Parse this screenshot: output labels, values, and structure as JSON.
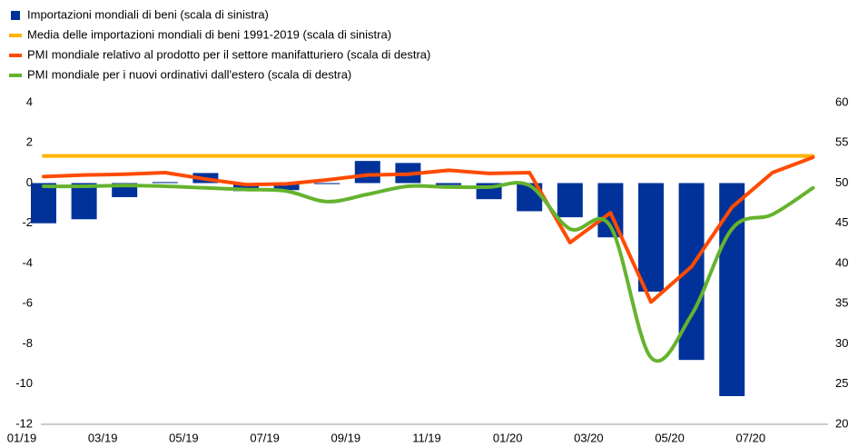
{
  "chart_data": {
    "type": "combo",
    "categories": [
      "01/19",
      null,
      "03/19",
      null,
      "05/19",
      null,
      "07/19",
      null,
      "09/19",
      null,
      "11/19",
      null,
      "01/20",
      null,
      "03/20",
      null,
      "05/20",
      null,
      "07/20",
      null
    ],
    "series": [
      {
        "name": "Importazioni mondiali di beni (scala di sinistra)",
        "type": "bar",
        "color": "#003299",
        "values": [
          -2.0,
          -1.8,
          -0.7,
          0.05,
          0.5,
          -0.4,
          -0.35,
          -0.05,
          1.1,
          1.0,
          -0.1,
          -0.8,
          -1.4,
          -1.7,
          -2.7,
          -5.4,
          -8.8,
          -10.6,
          null,
          null
        ]
      },
      {
        "name": "Media delle importazioni mondiali di beni 1991-2019 (scala di sinistra)",
        "type": "line",
        "color": "#ffb400",
        "values": [
          1.35,
          1.35,
          1.35,
          1.35,
          1.35,
          1.35,
          1.35,
          1.35,
          1.35,
          1.35,
          1.35,
          1.35,
          1.35,
          1.35,
          1.35,
          1.35,
          1.35,
          1.35,
          1.35,
          1.35
        ]
      },
      {
        "name": "PMI mondiale relativo al prodotto per il settore manifatturiero (scala di destra)",
        "type": "line",
        "axis": "y2",
        "color": "#ff4b00",
        "values": [
          50.8,
          51.0,
          51.1,
          51.3,
          50.5,
          49.8,
          49.9,
          50.4,
          51.0,
          51.1,
          51.6,
          51.2,
          51.3,
          42.6,
          46.3,
          35.2,
          39.6,
          47.0,
          51.3,
          53.2
        ]
      },
      {
        "name": "PMI mondiale per i nuovi ordinativi dall'estero (scala di destra)",
        "type": "line",
        "axis": "y2",
        "color": "#65b32e",
        "smooth": true,
        "values": [
          49.6,
          49.6,
          49.7,
          49.6,
          49.4,
          49.2,
          49.0,
          47.7,
          48.6,
          49.6,
          49.5,
          49.5,
          49.7,
          44.3,
          44.6,
          28.3,
          33.6,
          44.3,
          46.1,
          49.4
        ]
      }
    ],
    "ylim": [
      -12,
      4
    ],
    "yticks": [
      -12,
      -10,
      -8,
      -6,
      -4,
      -2,
      0,
      2,
      4
    ],
    "y2lim": [
      20,
      60
    ],
    "y2ticks": [
      20,
      25,
      30,
      35,
      40,
      45,
      50,
      55,
      60
    ],
    "legend": "top-left"
  }
}
